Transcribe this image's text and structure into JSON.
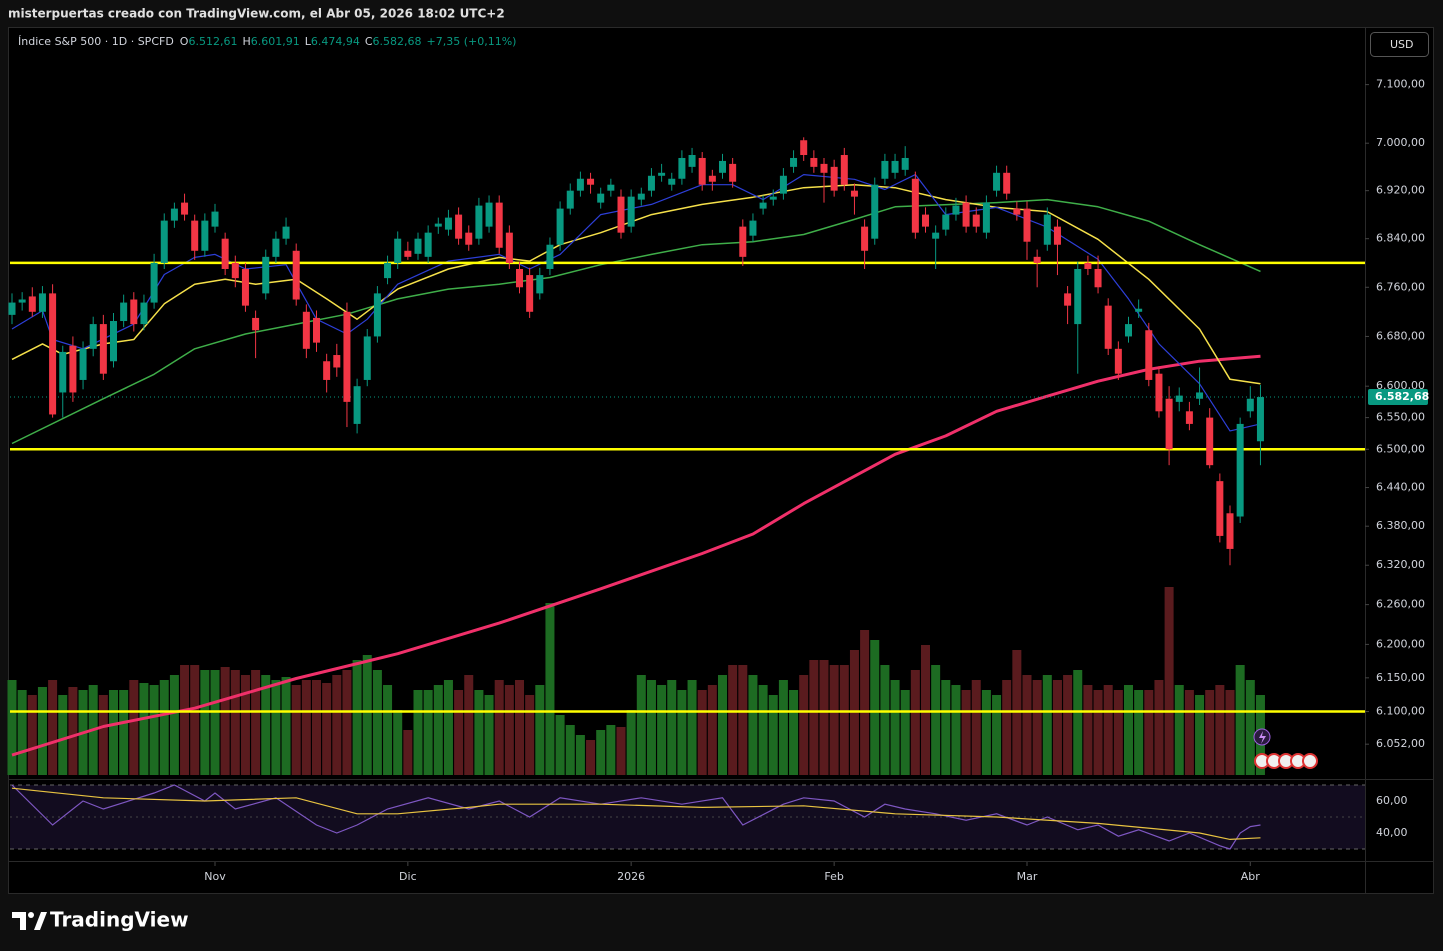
{
  "header": {
    "caption": "misterpuertas creado con TradingView.com, el Abr 05, 2026 18:02 UTC+2",
    "currency": "USD"
  },
  "footer": {
    "brand": "TradingView"
  },
  "chart_data": {
    "type": "candlestick",
    "title": "Índice S&P 500 · 1D · SPCFD",
    "ohlc": [
      {
        "key": "O",
        "value": 6512.61,
        "label": "6.512,61"
      },
      {
        "key": "H",
        "value": 6601.91,
        "label": "6.601,91"
      },
      {
        "key": "L",
        "value": 6474.94,
        "label": "6.474,94"
      },
      {
        "key": "C",
        "value": 6582.68,
        "label": "6.582,68"
      }
    ],
    "change_label": "+7,35 (+0,11%)",
    "last_price": {
      "value": 6582.68,
      "label": "6.582,68"
    },
    "log_scale": true,
    "up_color": "#089981",
    "down_color": "#f23645",
    "ylim": [
      6007,
      7198
    ],
    "yticks": [
      {
        "value": 7100,
        "label": "7.100,00"
      },
      {
        "value": 7000,
        "label": "7.000,00"
      },
      {
        "value": 6920,
        "label": "6.920,00"
      },
      {
        "value": 6840,
        "label": "6.840,00"
      },
      {
        "value": 6760,
        "label": "6.760,00"
      },
      {
        "value": 6680,
        "label": "6.680,00"
      },
      {
        "value": 6600,
        "label": "6.600,00"
      },
      {
        "value": 6550,
        "label": "6.550,00"
      },
      {
        "value": 6500,
        "label": "6.500,00"
      },
      {
        "value": 6440,
        "label": "6.440,00"
      },
      {
        "value": 6380,
        "label": "6.380,00"
      },
      {
        "value": 6320,
        "label": "6.320,00"
      },
      {
        "value": 6260,
        "label": "6.260,00"
      },
      {
        "value": 6200,
        "label": "6.200,00"
      },
      {
        "value": 6150,
        "label": "6.150,00"
      },
      {
        "value": 6100,
        "label": "6.100,00"
      },
      {
        "value": 6052,
        "label": "6.052,00"
      }
    ],
    "xticks": [
      {
        "value": 20,
        "label": "Nov"
      },
      {
        "value": 39,
        "label": "Dic"
      },
      {
        "value": 61,
        "label": "2026"
      },
      {
        "value": 81,
        "label": "Feb"
      },
      {
        "value": 100,
        "label": "Mar"
      },
      {
        "value": 122,
        "label": "Abr"
      }
    ],
    "candles": [
      [
        6715,
        6750,
        6700,
        6735
      ],
      [
        6735,
        6752,
        6722,
        6740
      ],
      [
        6745,
        6760,
        6712,
        6720
      ],
      [
        6720,
        6762,
        6710,
        6750
      ],
      [
        6750,
        6765,
        6550,
        6555
      ],
      [
        6590,
        6665,
        6550,
        6655
      ],
      [
        6665,
        6680,
        6575,
        6590
      ],
      [
        6610,
        6672,
        6595,
        6660
      ],
      [
        6660,
        6712,
        6648,
        6700
      ],
      [
        6700,
        6715,
        6610,
        6620
      ],
      [
        6640,
        6718,
        6630,
        6705
      ],
      [
        6705,
        6748,
        6695,
        6735
      ],
      [
        6740,
        6752,
        6688,
        6700
      ],
      [
        6700,
        6748,
        6690,
        6735
      ],
      [
        6735,
        6815,
        6725,
        6800
      ],
      [
        6800,
        6882,
        6790,
        6870
      ],
      [
        6870,
        6900,
        6858,
        6890
      ],
      [
        6900,
        6915,
        6870,
        6880
      ],
      [
        6870,
        6880,
        6805,
        6820
      ],
      [
        6820,
        6882,
        6810,
        6870
      ],
      [
        6860,
        6898,
        6850,
        6885
      ],
      [
        6840,
        6850,
        6780,
        6790
      ],
      [
        6800,
        6812,
        6760,
        6775
      ],
      [
        6790,
        6800,
        6720,
        6730
      ],
      [
        6710,
        6722,
        6645,
        6690
      ],
      [
        6750,
        6822,
        6740,
        6810
      ],
      [
        6810,
        6852,
        6800,
        6840
      ],
      [
        6840,
        6875,
        6830,
        6860
      ],
      [
        6820,
        6832,
        6730,
        6740
      ],
      [
        6720,
        6732,
        6645,
        6660
      ],
      [
        6710,
        6722,
        6655,
        6670
      ],
      [
        6640,
        6652,
        6590,
        6610
      ],
      [
        6650,
        6668,
        6615,
        6630
      ],
      [
        6720,
        6735,
        6535,
        6575
      ],
      [
        6540,
        6612,
        6525,
        6600
      ],
      [
        6610,
        6692,
        6600,
        6680
      ],
      [
        6680,
        6762,
        6670,
        6750
      ],
      [
        6775,
        6812,
        6765,
        6800
      ],
      [
        6800,
        6852,
        6790,
        6840
      ],
      [
        6820,
        6835,
        6805,
        6810
      ],
      [
        6815,
        6850,
        6805,
        6840
      ],
      [
        6810,
        6862,
        6800,
        6850
      ],
      [
        6860,
        6875,
        6848,
        6865
      ],
      [
        6855,
        6888,
        6845,
        6875
      ],
      [
        6880,
        6892,
        6830,
        6840
      ],
      [
        6850,
        6862,
        6820,
        6830
      ],
      [
        6840,
        6908,
        6830,
        6895
      ],
      [
        6860,
        6912,
        6850,
        6900
      ],
      [
        6900,
        6912,
        6815,
        6825
      ],
      [
        6850,
        6862,
        6790,
        6800
      ],
      [
        6790,
        6802,
        6750,
        6760
      ],
      [
        6780,
        6792,
        6710,
        6720
      ],
      [
        6750,
        6792,
        6740,
        6780
      ],
      [
        6790,
        6842,
        6780,
        6830
      ],
      [
        6830,
        6902,
        6820,
        6890
      ],
      [
        6890,
        6932,
        6880,
        6920
      ],
      [
        6920,
        6952,
        6910,
        6940
      ],
      [
        6940,
        6950,
        6915,
        6930
      ],
      [
        6900,
        6925,
        6890,
        6915
      ],
      [
        6920,
        6940,
        6910,
        6930
      ],
      [
        6910,
        6922,
        6840,
        6850
      ],
      [
        6860,
        6922,
        6850,
        6910
      ],
      [
        6905,
        6925,
        6895,
        6915
      ],
      [
        6920,
        6958,
        6910,
        6945
      ],
      [
        6945,
        6965,
        6935,
        6950
      ],
      [
        6930,
        6950,
        6920,
        6940
      ],
      [
        6940,
        6988,
        6930,
        6975
      ],
      [
        6960,
        6992,
        6950,
        6980
      ],
      [
        6975,
        6985,
        6920,
        6930
      ],
      [
        6945,
        6955,
        6920,
        6935
      ],
      [
        6950,
        6982,
        6940,
        6970
      ],
      [
        6965,
        6975,
        6925,
        6935
      ],
      [
        6860,
        6872,
        6795,
        6810
      ],
      [
        6845,
        6882,
        6835,
        6870
      ],
      [
        6890,
        6912,
        6880,
        6900
      ],
      [
        6905,
        6922,
        6895,
        6910
      ],
      [
        6915,
        6958,
        6905,
        6945
      ],
      [
        6960,
        6988,
        6950,
        6975
      ],
      [
        7005,
        7010,
        6970,
        6980
      ],
      [
        6975,
        6988,
        6950,
        6960
      ],
      [
        6965,
        6975,
        6900,
        6950
      ],
      [
        6960,
        6972,
        6910,
        6920
      ],
      [
        6980,
        6992,
        6920,
        6930
      ],
      [
        6920,
        6932,
        6880,
        6910
      ],
      [
        6860,
        6872,
        6790,
        6820
      ],
      [
        6840,
        6942,
        6830,
        6930
      ],
      [
        6940,
        6982,
        6930,
        6970
      ],
      [
        6950,
        6982,
        6940,
        6970
      ],
      [
        6955,
        6995,
        6945,
        6975
      ],
      [
        6940,
        6952,
        6840,
        6850
      ],
      [
        6880,
        6892,
        6850,
        6860
      ],
      [
        6840,
        6862,
        6790,
        6850
      ],
      [
        6855,
        6892,
        6845,
        6880
      ],
      [
        6880,
        6908,
        6870,
        6895
      ],
      [
        6900,
        6912,
        6850,
        6860
      ],
      [
        6880,
        6892,
        6850,
        6860
      ],
      [
        6850,
        6912,
        6840,
        6900
      ],
      [
        6920,
        6962,
        6910,
        6950
      ],
      [
        6950,
        6962,
        6905,
        6915
      ],
      [
        6890,
        6902,
        6870,
        6880
      ],
      [
        6890,
        6902,
        6805,
        6835
      ],
      [
        6810,
        6822,
        6760,
        6800
      ],
      [
        6830,
        6892,
        6820,
        6880
      ],
      [
        6860,
        6872,
        6780,
        6830
      ],
      [
        6750,
        6762,
        6700,
        6730
      ],
      [
        6700,
        6802,
        6620,
        6790
      ],
      [
        6800,
        6812,
        6780,
        6790
      ],
      [
        6790,
        6812,
        6750,
        6760
      ],
      [
        6730,
        6742,
        6650,
        6660
      ],
      [
        6660,
        6672,
        6610,
        6620
      ],
      [
        6680,
        6712,
        6670,
        6700
      ],
      [
        6720,
        6740,
        6710,
        6725
      ],
      [
        6690,
        6702,
        6600,
        6610
      ],
      [
        6620,
        6632,
        6550,
        6560
      ],
      [
        6580,
        6600,
        6475,
        6500
      ],
      [
        6575,
        6598,
        6560,
        6585
      ],
      [
        6560,
        6575,
        6530,
        6540
      ],
      [
        6580,
        6630,
        6570,
        6590
      ],
      [
        6550,
        6565,
        6470,
        6475
      ],
      [
        6450,
        6462,
        6355,
        6365
      ],
      [
        6400,
        6412,
        6320,
        6345
      ],
      [
        6395,
        6550,
        6385,
        6540
      ],
      [
        6560,
        6600,
        6550,
        6580
      ],
      [
        6512.61,
        6601.91,
        6474.94,
        6582.68
      ]
    ],
    "volume": [
      95,
      85,
      80,
      88,
      95,
      80,
      88,
      85,
      90,
      80,
      85,
      85,
      95,
      92,
      90,
      95,
      100,
      110,
      110,
      105,
      105,
      108,
      105,
      100,
      105,
      100,
      95,
      98,
      90,
      95,
      95,
      92,
      100,
      105,
      115,
      120,
      105,
      90,
      65,
      45,
      85,
      85,
      90,
      95,
      85,
      100,
      85,
      80,
      95,
      90,
      95,
      80,
      90,
      172,
      60,
      50,
      40,
      35,
      45,
      50,
      48,
      65,
      100,
      95,
      90,
      95,
      85,
      95,
      85,
      90,
      100,
      110,
      110,
      100,
      90,
      80,
      95,
      85,
      100,
      115,
      115,
      110,
      110,
      125,
      145,
      135,
      110,
      95,
      85,
      105,
      130,
      110,
      95,
      90,
      85,
      95,
      85,
      80,
      95,
      125,
      100,
      95,
      100,
      95,
      100,
      105,
      90,
      85,
      90,
      85,
      90,
      85,
      85,
      95,
      188,
      90,
      85,
      80,
      85,
      90,
      85,
      110,
      95,
      80
    ],
    "volume_up_color": "#1d6b22",
    "volume_down_color": "#5a1b1e",
    "hlines": [
      {
        "value": 6800,
        "color": "#ffff00"
      },
      {
        "value": 6500,
        "color": "#ffff00"
      },
      {
        "value": 6100,
        "color": "#ffff00"
      }
    ],
    "overlays": [
      {
        "color": "#f0306a",
        "width": 3,
        "x": [
          0,
          9,
          18,
          28,
          38,
          48,
          58,
          68,
          73,
          78,
          87,
          92,
          97,
          102,
          107,
          112,
          117,
          123
        ],
        "values": [
          6036,
          6078,
          6105,
          6149,
          6186,
          6232,
          6284,
          6338,
          6368,
          6415,
          6492,
          6521,
          6560,
          6584,
          6608,
          6627,
          6640,
          6648
        ]
      },
      {
        "color": "#3fae49",
        "width": 1.5,
        "x": [
          0,
          9,
          14,
          18,
          23,
          28,
          33,
          38,
          43,
          48,
          53,
          58,
          63,
          68,
          73,
          78,
          83,
          87,
          97,
          102,
          107,
          112,
          117,
          123
        ],
        "values": [
          6509,
          6580,
          6619,
          6660,
          6684,
          6700,
          6716,
          6741,
          6757,
          6765,
          6776,
          6797,
          6814,
          6830,
          6835,
          6847,
          6872,
          6893,
          6900,
          6905,
          6893,
          6869,
          6830,
          6786
        ]
      },
      {
        "color": "#f5e04a",
        "width": 1.5,
        "x": [
          0,
          3,
          5,
          9,
          12,
          15,
          18,
          21,
          24,
          28,
          31,
          34,
          36,
          38,
          43,
          48,
          51,
          54,
          58,
          63,
          68,
          73,
          78,
          83,
          87,
          92,
          97,
          102,
          107,
          112,
          117,
          120,
          123
        ],
        "values": [
          6643,
          6668,
          6651,
          6668,
          6675,
          6733,
          6765,
          6773,
          6765,
          6773,
          6741,
          6708,
          6733,
          6757,
          6790,
          6809,
          6803,
          6830,
          6850,
          6880,
          6897,
          6909,
          6925,
          6930,
          6925,
          6905,
          6892,
          6885,
          6839,
          6773,
          6692,
          6611,
          6604
        ]
      },
      {
        "color": "#2d3fd8",
        "width": 1.2,
        "x": [
          0,
          3,
          4,
          7,
          12,
          15,
          18,
          20,
          23,
          27,
          30,
          33,
          35,
          38,
          43,
          48,
          51,
          54,
          58,
          63,
          68,
          71,
          74,
          78,
          83,
          86,
          89,
          92,
          97,
          102,
          107,
          110,
          113,
          117,
          120,
          123
        ],
        "values": [
          6692,
          6722,
          6675,
          6660,
          6700,
          6781,
          6809,
          6814,
          6790,
          6797,
          6708,
          6684,
          6708,
          6765,
          6803,
          6814,
          6790,
          6814,
          6880,
          6897,
          6930,
          6930,
          6905,
          6947,
          6939,
          6922,
          6947,
          6880,
          6892,
          6859,
          6806,
          6741,
          6668,
          6604,
          6529,
          6540
        ]
      }
    ],
    "rsi": {
      "ylim": [
        24,
        72
      ],
      "yticks": [
        {
          "value": 60,
          "label": "60,00"
        },
        {
          "value": 40,
          "label": "40,00"
        }
      ],
      "bands": [
        70,
        30
      ],
      "series": [
        {
          "color": "#7e57c2",
          "x": [
            0,
            4,
            7,
            9,
            14,
            16,
            19,
            20,
            22,
            26,
            30,
            32,
            34,
            37,
            41,
            45,
            48,
            51,
            54,
            58,
            62,
            66,
            70,
            72,
            76,
            78,
            81,
            84,
            86,
            88,
            91,
            94,
            97,
            100,
            102,
            105,
            107,
            109,
            111,
            114,
            116,
            119,
            120,
            121,
            122,
            123
          ],
          "values": [
            70,
            45,
            60,
            55,
            65,
            70,
            60,
            65,
            55,
            62,
            45,
            40,
            45,
            55,
            62,
            55,
            60,
            50,
            62,
            58,
            62,
            58,
            62,
            45,
            58,
            62,
            60,
            50,
            58,
            55,
            52,
            48,
            52,
            45,
            50,
            42,
            45,
            38,
            42,
            35,
            40,
            32,
            30,
            40,
            44,
            45
          ]
        },
        {
          "color": "#e8c341",
          "x": [
            0,
            9,
            19,
            28,
            34,
            38,
            45,
            48,
            58,
            68,
            78,
            87,
            97,
            107,
            117,
            120,
            123
          ],
          "values": [
            68,
            62,
            60,
            62,
            52,
            52,
            56,
            58,
            58,
            56,
            57,
            52,
            50,
            46,
            40,
            36,
            37
          ]
        }
      ]
    }
  }
}
